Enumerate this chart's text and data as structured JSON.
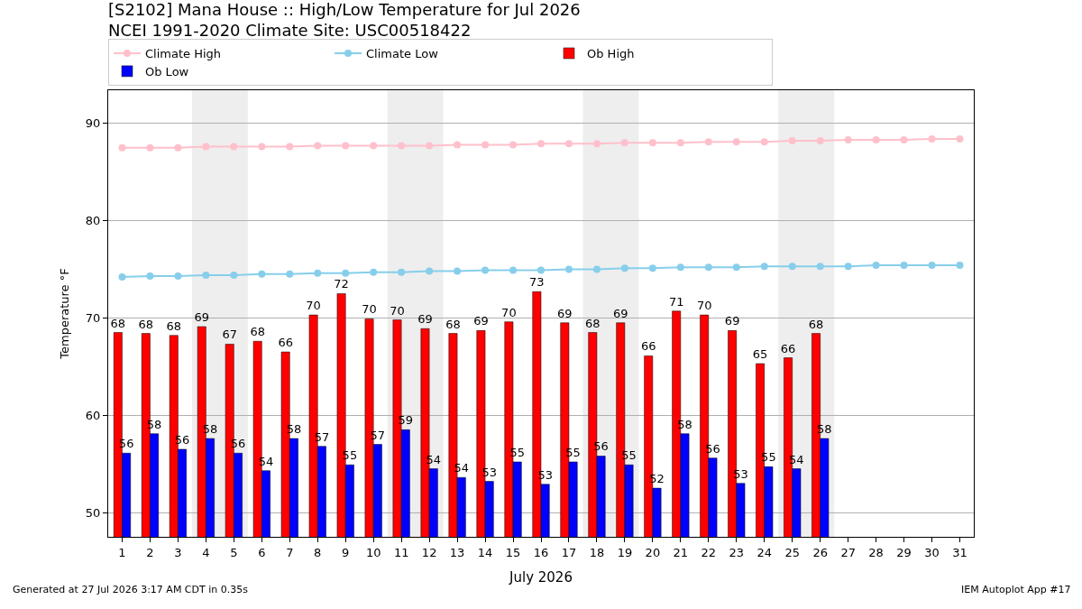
{
  "chart_data": {
    "type": "bar",
    "title": "[S2102] Mana House :: High/Low Temperature for Jul 2026",
    "subtitle": "NCEI 1991-2020 Climate Site: USC00518422",
    "xlabel": "July 2026",
    "ylabel": "Temperature °F",
    "x": [
      1,
      2,
      3,
      4,
      5,
      6,
      7,
      8,
      9,
      10,
      11,
      12,
      13,
      14,
      15,
      16,
      17,
      18,
      19,
      20,
      21,
      22,
      23,
      24,
      25,
      26,
      27,
      28,
      29,
      30,
      31
    ],
    "series": [
      {
        "name": "Climate High",
        "type": "line",
        "color": "#ffc0cb",
        "marker": "circle",
        "values": [
          87.5,
          87.5,
          87.5,
          87.6,
          87.6,
          87.6,
          87.6,
          87.7,
          87.7,
          87.7,
          87.7,
          87.7,
          87.8,
          87.8,
          87.8,
          87.9,
          87.9,
          87.9,
          88.0,
          88.0,
          88.0,
          88.1,
          88.1,
          88.1,
          88.2,
          88.2,
          88.3,
          88.3,
          88.3,
          88.4,
          88.4
        ]
      },
      {
        "name": "Climate Low",
        "type": "line",
        "color": "#87ceeb",
        "marker": "circle",
        "values": [
          74.2,
          74.3,
          74.3,
          74.4,
          74.4,
          74.5,
          74.5,
          74.6,
          74.6,
          74.7,
          74.7,
          74.8,
          74.8,
          74.9,
          74.9,
          74.9,
          75.0,
          75.0,
          75.1,
          75.1,
          75.2,
          75.2,
          75.2,
          75.3,
          75.3,
          75.3,
          75.3,
          75.4,
          75.4,
          75.4,
          75.4
        ]
      },
      {
        "name": "Ob High",
        "color": "#ff0000",
        "x": [
          1,
          2,
          3,
          4,
          5,
          6,
          7,
          8,
          9,
          10,
          11,
          12,
          13,
          14,
          15,
          16,
          17,
          18,
          19,
          20,
          21,
          22,
          23,
          24,
          25,
          26
        ],
        "values": [
          68.5,
          68.4,
          68.2,
          69.1,
          67.3,
          67.6,
          66.5,
          70.3,
          72.5,
          69.9,
          69.8,
          68.9,
          68.4,
          68.7,
          69.6,
          72.7,
          69.5,
          68.5,
          69.5,
          66.1,
          70.7,
          70.3,
          68.7,
          65.3,
          65.9,
          68.4
        ],
        "value_labels": [
          "68",
          "68",
          "68",
          "69",
          "67",
          "68",
          "66",
          "70",
          "72",
          "70",
          "70",
          "69",
          "68",
          "69",
          "70",
          "73",
          "69",
          "68",
          "69",
          "66",
          "71",
          "70",
          "69",
          "65",
          "66",
          "68"
        ]
      },
      {
        "name": "Ob Low",
        "color": "#0000ff",
        "x": [
          1,
          2,
          3,
          4,
          5,
          6,
          7,
          8,
          9,
          10,
          11,
          12,
          13,
          14,
          15,
          16,
          17,
          18,
          19,
          20,
          21,
          22,
          23,
          24,
          25,
          26
        ],
        "values": [
          56.1,
          58.1,
          56.5,
          57.6,
          56.1,
          54.3,
          57.6,
          56.8,
          54.9,
          57.0,
          58.5,
          54.5,
          53.6,
          53.2,
          55.2,
          52.9,
          55.2,
          55.8,
          54.9,
          52.5,
          58.1,
          55.6,
          53.0,
          54.7,
          54.5,
          57.6
        ],
        "value_labels": [
          "56",
          "58",
          "56",
          "58",
          "56",
          "54",
          "58",
          "57",
          "55",
          "57",
          "59",
          "54",
          "54",
          "53",
          "55",
          "53",
          "55",
          "56",
          "55",
          "52",
          "58",
          "56",
          "53",
          "55",
          "54",
          "58"
        ]
      }
    ],
    "bands": [
      {
        "axis": "x",
        "from": 3.5,
        "to": 5.5,
        "color": "#eeeeee"
      },
      {
        "axis": "x",
        "from": 10.5,
        "to": 12.5,
        "color": "#eeeeee"
      },
      {
        "axis": "x",
        "from": 17.5,
        "to": 19.5,
        "color": "#eeeeee"
      },
      {
        "axis": "x",
        "from": 24.5,
        "to": 26.5,
        "color": "#eeeeee"
      }
    ],
    "xlim": [
      0.5,
      31.5
    ],
    "xticks": [
      1,
      2,
      3,
      4,
      5,
      6,
      7,
      8,
      9,
      10,
      11,
      12,
      13,
      14,
      15,
      16,
      17,
      18,
      19,
      20,
      21,
      22,
      23,
      24,
      25,
      26,
      27,
      28,
      29,
      30,
      31
    ],
    "ylim": [
      47.5,
      93.4
    ],
    "yticks": [
      50,
      60,
      70,
      80,
      90
    ],
    "grid": "y",
    "legend": "top",
    "annotations": [
      "Generated at 27 Jul 2026 3:17 AM CDT in 0.35s",
      "IEM Autoplot App #17"
    ]
  }
}
